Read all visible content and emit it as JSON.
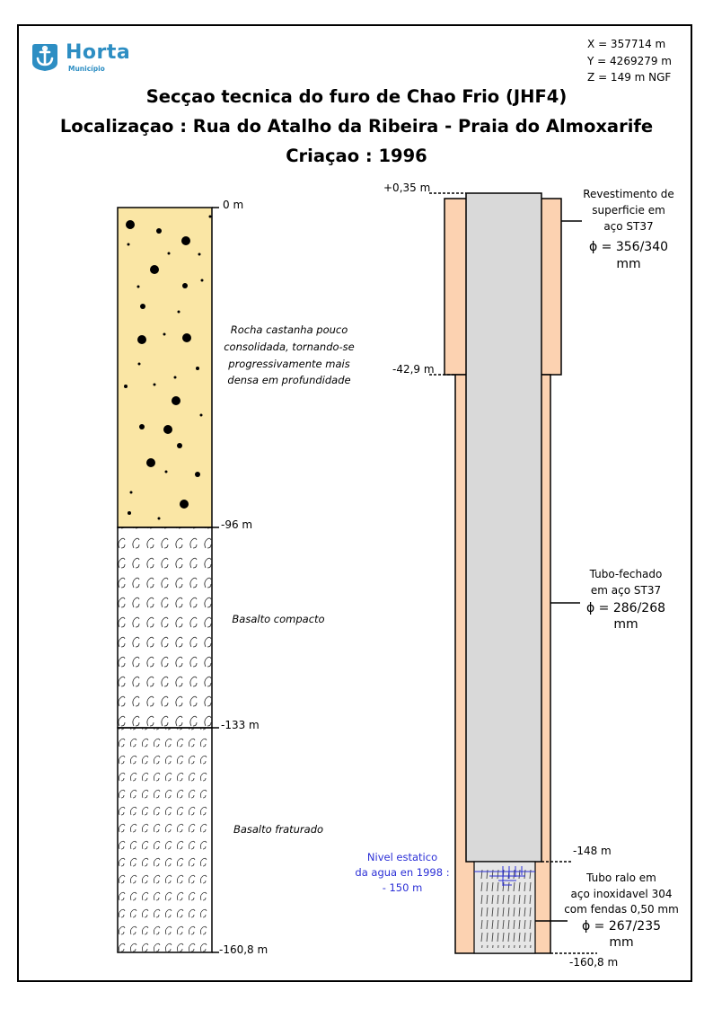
{
  "logo": {
    "name": "Horta",
    "subtitle": "Município",
    "icon": "anchor-icon",
    "color": "#2d8ec3"
  },
  "coordinates": {
    "x": "X = 357714 m",
    "y": "Y = 4269279 m",
    "z": "Z = 149 m NGF"
  },
  "title": {
    "line1": "Secçao tecnica do furo de Chao Frio (JHF4)",
    "line2": "Localizaçao : Rua do Atalho da Ribeira - Praia do Almoxarife",
    "line3": "Criaçao : 1996"
  },
  "geology": {
    "depth_labels": [
      "0 m",
      "-96 m",
      "-133 m",
      "-160,8 m"
    ],
    "layers": [
      {
        "from_m": 0,
        "to_m": 96,
        "pattern": "dotted-sand",
        "color": "#fae6a5",
        "label_lines": [
          "Rocha castanha pouco",
          "consolidada, tornando-se",
          "progressivamente mais",
          "densa em profundidade"
        ]
      },
      {
        "from_m": 96,
        "to_m": 133,
        "pattern": "basalt-swirl",
        "color": "#ffffff",
        "label_lines": [
          "Basalto compacto"
        ]
      },
      {
        "from_m": 133,
        "to_m": 160.8,
        "pattern": "basalt-swirl-dense",
        "color": "#ffffff",
        "label_lines": [
          "Basalto fraturado"
        ]
      }
    ]
  },
  "well": {
    "top_label": "+0,35 m",
    "surface_casing_bottom_label": "-42,9 m",
    "tube_bottom_label": "-148 m",
    "bottom_label": "-160,8 m",
    "colors": {
      "casing": "#fcd2b1",
      "tube": "#d9d9d9",
      "water_marker": "#2b2fd6"
    },
    "annotations": {
      "surface_casing": [
        "Revestimento de",
        "superficie em",
        "aço ST37",
        "ϕ = 356/340",
        "mm"
      ],
      "closed_tube": [
        "Tubo-fechado",
        "em aço ST37",
        "ϕ = 286/268",
        "mm"
      ],
      "screen_tube": [
        "Tubo ralo em",
        "aço inoxidavel 304",
        "com fendas 0,50 mm",
        "ϕ = 267/235",
        "mm"
      ],
      "water_level": [
        "Nivel estatico",
        "da agua en 1998 :",
        "- 150 m"
      ]
    }
  }
}
